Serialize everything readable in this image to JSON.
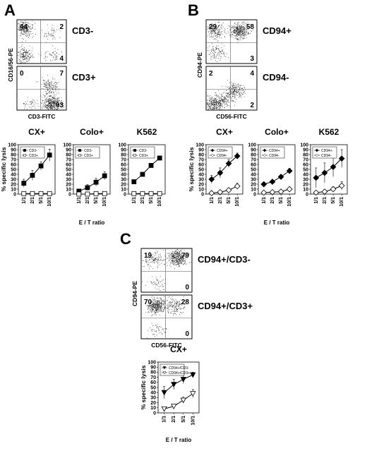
{
  "panels": [
    {
      "letter": "A",
      "xlabel": "E / T ratio",
      "flow": {
        "ylabel": "CD16/56-PE",
        "xlabel": "CD3-FITC",
        "plots": [
          {
            "label": "CD3-",
            "q_ul": "44",
            "q_ur": "2",
            "q_ll": "",
            "q_lr": "4",
            "clusters": [
              [
                0.15,
                0.8,
                0.1
              ],
              [
                0.15,
                0.2,
                0.07
              ],
              [
                0.7,
                0.7,
                0.02
              ],
              [
                0.7,
                0.2,
                0.02
              ]
            ]
          },
          {
            "label": "CD3+",
            "q_ul": "0",
            "q_ur": "7",
            "q_ll": "",
            "q_lr": "93",
            "clusters": [
              [
                0.7,
                0.15,
                0.15
              ],
              [
                0.65,
                0.55,
                0.06
              ],
              [
                0.3,
                0.1,
                0.02
              ]
            ]
          }
        ]
      }
    },
    {
      "letter": "B",
      "xlabel": "E / T ratio",
      "flow": {
        "ylabel": "CD94-PE",
        "xlabel": "CD56-FITC",
        "plots": [
          {
            "label": "CD94+",
            "q_ul": "29",
            "q_ur": "58",
            "q_ll": "",
            "q_lr": "3",
            "clusters": [
              [
                0.65,
                0.75,
                0.15
              ],
              [
                0.2,
                0.75,
                0.08
              ],
              [
                0.2,
                0.25,
                0.04
              ]
            ]
          },
          {
            "label": "CD94-",
            "q_ul": "2",
            "q_ur": "4",
            "q_ll": "",
            "q_lr": "2",
            "clusters": [
              [
                0.15,
                0.15,
                0.12
              ],
              [
                0.55,
                0.45,
                0.08
              ],
              [
                0.35,
                0.25,
                0.05
              ]
            ]
          }
        ]
      }
    },
    {
      "letter": "C",
      "xlabel": "E / T ratio",
      "flow": {
        "ylabel": "CD94-PE",
        "xlabel": "CD56-FITC",
        "plots": [
          {
            "label": "CD94+/CD3-",
            "q_ul": "19",
            "q_ur": "79",
            "q_ll": "",
            "q_lr": "0",
            "clusters": [
              [
                0.7,
                0.8,
                0.15
              ],
              [
                0.25,
                0.75,
                0.05
              ],
              [
                0.3,
                0.2,
                0.02
              ]
            ]
          },
          {
            "label": "CD94+/CD3+",
            "q_ul": "70",
            "q_ur": "28",
            "q_ll": "",
            "q_lr": "0",
            "clusters": [
              [
                0.3,
                0.75,
                0.15
              ],
              [
                0.65,
                0.75,
                0.06
              ],
              [
                0.3,
                0.2,
                0.02
              ]
            ]
          }
        ]
      }
    }
  ],
  "chart_data": [
    {
      "panel": "A",
      "type": "line",
      "title": "CX+",
      "ylabel": "% specific lysis",
      "ylim": [
        0,
        100
      ],
      "yticks": [
        0,
        10,
        20,
        30,
        40,
        50,
        60,
        70,
        80,
        90,
        100
      ],
      "categories": [
        "1/1",
        "2/1",
        "5/1",
        "10/1"
      ],
      "series": [
        {
          "name": "CD3-",
          "marker": "square-filled",
          "values": [
            22,
            38,
            57,
            79
          ],
          "errors": [
            8,
            10,
            8,
            12
          ]
        },
        {
          "name": "CD3+",
          "marker": "square-open",
          "values": [
            1,
            1,
            1,
            1
          ],
          "errors": [
            0,
            0,
            0,
            0
          ]
        }
      ]
    },
    {
      "panel": "A",
      "type": "line",
      "title": "Colo+",
      "ylabel": "",
      "ylim": [
        0,
        100
      ],
      "yticks": [
        0,
        10,
        20,
        30,
        40,
        50,
        60,
        70,
        80,
        90,
        100
      ],
      "categories": [
        "1/1",
        "2/1",
        "5/1",
        "10/1"
      ],
      "series": [
        {
          "name": "CD3-",
          "marker": "square-filled",
          "values": [
            6,
            13,
            24,
            37
          ],
          "errors": [
            4,
            6,
            8,
            8
          ]
        },
        {
          "name": "CD3+",
          "marker": "square-open",
          "values": [
            0,
            0,
            1,
            1
          ],
          "errors": [
            0,
            0,
            0,
            0
          ]
        }
      ]
    },
    {
      "panel": "A",
      "type": "line",
      "title": "K562",
      "ylabel": "",
      "ylim": [
        0,
        100
      ],
      "yticks": [
        0,
        10,
        20,
        30,
        40,
        50,
        60,
        70,
        80,
        90,
        100
      ],
      "categories": [
        "1/1",
        "2/1",
        "5/1",
        "10/1"
      ],
      "series": [
        {
          "name": "CD3-",
          "marker": "square-filled",
          "values": [
            25,
            40,
            58,
            73
          ],
          "errors": [
            3,
            3,
            3,
            3
          ]
        },
        {
          "name": "CD3+",
          "marker": "square-open",
          "values": [
            1,
            1,
            1,
            1
          ],
          "errors": [
            0,
            0,
            0,
            0
          ]
        }
      ]
    },
    {
      "panel": "B",
      "type": "line",
      "title": "CX+",
      "ylabel": "% specific lysis",
      "ylim": [
        0,
        100
      ],
      "yticks": [
        0,
        10,
        20,
        30,
        40,
        50,
        60,
        70,
        80,
        90,
        100
      ],
      "categories": [
        "1/1",
        "2/1",
        "5/1",
        "10/1"
      ],
      "series": [
        {
          "name": "CD94+",
          "marker": "diamond-filled",
          "values": [
            30,
            43,
            62,
            77
          ],
          "errors": [
            8,
            10,
            8,
            6
          ]
        },
        {
          "name": "CD94-",
          "marker": "diamond-open",
          "values": [
            2,
            4,
            8,
            16
          ],
          "errors": [
            1,
            2,
            4,
            6
          ]
        }
      ]
    },
    {
      "panel": "B",
      "type": "line",
      "title": "Colo+",
      "ylabel": "",
      "ylim": [
        0,
        100
      ],
      "yticks": [
        0,
        10,
        20,
        30,
        40,
        50,
        60,
        70,
        80,
        90,
        100
      ],
      "categories": [
        "1/1",
        "2/1",
        "5/1",
        "10/1"
      ],
      "series": [
        {
          "name": "CD94+",
          "marker": "diamond-filled",
          "values": [
            20,
            25,
            35,
            47
          ],
          "errors": [
            2,
            3,
            4,
            5
          ]
        },
        {
          "name": "CD94-",
          "marker": "diamond-open",
          "values": [
            3,
            4,
            5,
            10
          ],
          "errors": [
            1,
            1,
            2,
            2
          ]
        }
      ]
    },
    {
      "panel": "B",
      "type": "line",
      "title": "K562",
      "ylabel": "",
      "ylim": [
        0,
        100
      ],
      "yticks": [
        0,
        10,
        20,
        30,
        40,
        50,
        60,
        70,
        80,
        90,
        100
      ],
      "categories": [
        "1/1",
        "2/1",
        "5/1",
        "10/1"
      ],
      "series": [
        {
          "name": "CD94+",
          "marker": "diamond-filled",
          "values": [
            33,
            43,
            55,
            72
          ],
          "errors": [
            20,
            20,
            20,
            18
          ]
        },
        {
          "name": "CD94-",
          "marker": "diamond-open",
          "values": [
            3,
            5,
            10,
            17
          ],
          "errors": [
            2,
            3,
            5,
            8
          ]
        }
      ]
    },
    {
      "panel": "C",
      "type": "line",
      "title": "CX+",
      "ylabel": "% specific lysis",
      "ylim": [
        0,
        100
      ],
      "yticks": [
        0,
        10,
        20,
        30,
        40,
        50,
        60,
        70,
        80,
        90,
        100
      ],
      "categories": [
        "1/1",
        "2/1",
        "5/1",
        "10/1"
      ],
      "series": [
        {
          "name": "CD94+/CD3-",
          "marker": "triangle-down-filled",
          "values": [
            40,
            56,
            66,
            75
          ],
          "errors": [
            12,
            10,
            8,
            5
          ]
        },
        {
          "name": "CD94+/CD3+",
          "marker": "triangle-down-open",
          "values": [
            8,
            13,
            25,
            38
          ],
          "errors": [
            2,
            4,
            6,
            8
          ]
        }
      ]
    }
  ]
}
